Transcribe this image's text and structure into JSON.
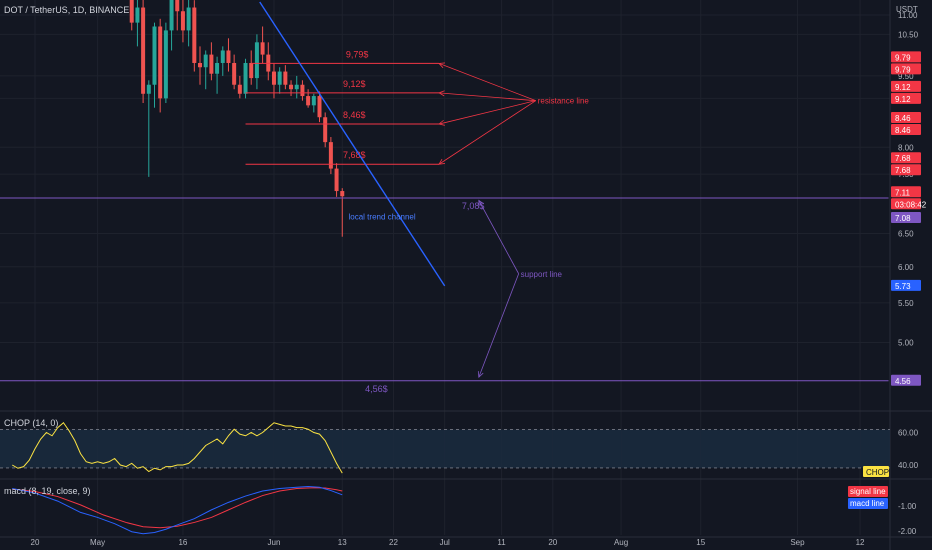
{
  "header": {
    "symbol": "DOT / TetherUS, 1D, BINANCE",
    "currency": "USDT"
  },
  "colors": {
    "bg": "#131722",
    "up": "#26a69a",
    "down": "#ef5350",
    "purple": "#7e57c2",
    "blue": "#2962ff",
    "red_line": "#f23645",
    "chop": "#fbe342",
    "signal": "#f23645",
    "macd": "#2962ff"
  },
  "chart_data": [
    {
      "type": "candlestick",
      "ylim": [
        4.25,
        11.35
      ],
      "y_scale": "log",
      "x_ticks": [
        {
          "label": "20",
          "day": 0
        },
        {
          "label": "May",
          "day": 11
        },
        {
          "label": "16",
          "day": 26
        },
        {
          "label": "Jun",
          "day": 42
        },
        {
          "label": "13",
          "day": 54
        },
        {
          "label": "22",
          "day": 63
        },
        {
          "label": "Jul",
          "day": 72
        },
        {
          "label": "11",
          "day": 82
        },
        {
          "label": "20",
          "day": 91
        },
        {
          "label": "Aug",
          "day": 103
        },
        {
          "label": "15",
          "day": 117
        },
        {
          "label": "Sep",
          "day": 134
        },
        {
          "label": "12",
          "day": 145
        }
      ],
      "y_ticks": [
        "11.00",
        "10.50",
        "9.50",
        "9.00",
        "8.00",
        "7.50",
        "6.50",
        "6.00",
        "5.50",
        "5.00"
      ],
      "price_badges": [
        {
          "text": "9.79",
          "color": "#f23645"
        },
        {
          "text": "9.79",
          "color": "#f23645"
        },
        {
          "text": "9.12",
          "color": "#f23645"
        },
        {
          "text": "9.12",
          "color": "#f23645"
        },
        {
          "text": "8.46",
          "color": "#f23645"
        },
        {
          "text": "8.46",
          "color": "#f23645"
        },
        {
          "text": "7.68",
          "color": "#f23645"
        },
        {
          "text": "7.68",
          "color": "#f23645"
        },
        {
          "text": "7.11",
          "color": "#f23645"
        },
        {
          "text": "03:08:42",
          "color": "#f23645"
        },
        {
          "text": "7.08",
          "color": "#7e57c2"
        },
        {
          "text": "5.73",
          "color": "#2962ff"
        },
        {
          "text": "4.56",
          "color": "#7e57c2"
        }
      ],
      "candles": [
        {
          "d": 17,
          "o": 12.6,
          "h": 13.2,
          "l": 10.6,
          "c": 10.8
        },
        {
          "d": 18,
          "o": 10.8,
          "h": 12.6,
          "l": 10.2,
          "c": 11.2
        },
        {
          "d": 19,
          "o": 11.2,
          "h": 11.6,
          "l": 8.9,
          "c": 9.1
        },
        {
          "d": 20,
          "o": 9.1,
          "h": 9.4,
          "l": 7.45,
          "c": 9.3
        },
        {
          "d": 21,
          "o": 9.3,
          "h": 10.8,
          "l": 8.8,
          "c": 10.7
        },
        {
          "d": 22,
          "o": 10.7,
          "h": 10.9,
          "l": 8.7,
          "c": 9.0
        },
        {
          "d": 23,
          "o": 9.0,
          "h": 10.8,
          "l": 8.9,
          "c": 10.6
        },
        {
          "d": 24,
          "o": 10.6,
          "h": 12.5,
          "l": 10.1,
          "c": 12.2
        },
        {
          "d": 25,
          "o": 12.2,
          "h": 12.8,
          "l": 10.6,
          "c": 11.1
        },
        {
          "d": 26,
          "o": 11.1,
          "h": 11.7,
          "l": 10.3,
          "c": 10.6
        },
        {
          "d": 27,
          "o": 10.6,
          "h": 11.5,
          "l": 10.2,
          "c": 11.2
        },
        {
          "d": 28,
          "o": 11.2,
          "h": 11.4,
          "l": 9.6,
          "c": 9.8
        },
        {
          "d": 29,
          "o": 9.8,
          "h": 10.2,
          "l": 9.3,
          "c": 9.7
        },
        {
          "d": 30,
          "o": 9.7,
          "h": 10.1,
          "l": 9.2,
          "c": 10.0
        },
        {
          "d": 31,
          "o": 10.0,
          "h": 10.3,
          "l": 9.4,
          "c": 9.55
        },
        {
          "d": 32,
          "o": 9.55,
          "h": 9.95,
          "l": 9.1,
          "c": 9.8
        },
        {
          "d": 33,
          "o": 9.8,
          "h": 10.2,
          "l": 9.5,
          "c": 10.1
        },
        {
          "d": 34,
          "o": 10.1,
          "h": 10.4,
          "l": 9.6,
          "c": 9.8
        },
        {
          "d": 35,
          "o": 9.8,
          "h": 10.0,
          "l": 9.2,
          "c": 9.3
        },
        {
          "d": 36,
          "o": 9.3,
          "h": 9.5,
          "l": 9.0,
          "c": 9.1
        },
        {
          "d": 37,
          "o": 9.1,
          "h": 9.9,
          "l": 9.0,
          "c": 9.8
        },
        {
          "d": 38,
          "o": 9.8,
          "h": 10.1,
          "l": 9.3,
          "c": 9.45
        },
        {
          "d": 39,
          "o": 9.45,
          "h": 10.5,
          "l": 9.2,
          "c": 10.3
        },
        {
          "d": 40,
          "o": 10.3,
          "h": 10.7,
          "l": 9.8,
          "c": 10.0
        },
        {
          "d": 41,
          "o": 10.0,
          "h": 10.3,
          "l": 9.4,
          "c": 9.6
        },
        {
          "d": 42,
          "o": 9.6,
          "h": 9.8,
          "l": 9.0,
          "c": 9.3
        },
        {
          "d": 43,
          "o": 9.3,
          "h": 9.7,
          "l": 9.1,
          "c": 9.6
        },
        {
          "d": 44,
          "o": 9.6,
          "h": 9.75,
          "l": 9.2,
          "c": 9.3
        },
        {
          "d": 45,
          "o": 9.3,
          "h": 9.4,
          "l": 9.05,
          "c": 9.2
        },
        {
          "d": 46,
          "o": 9.2,
          "h": 9.5,
          "l": 9.0,
          "c": 9.3
        },
        {
          "d": 47,
          "o": 9.3,
          "h": 9.4,
          "l": 8.95,
          "c": 9.05
        },
        {
          "d": 48,
          "o": 9.05,
          "h": 9.2,
          "l": 8.8,
          "c": 8.85
        },
        {
          "d": 49,
          "o": 8.85,
          "h": 9.1,
          "l": 8.7,
          "c": 9.05
        },
        {
          "d": 50,
          "o": 9.05,
          "h": 9.15,
          "l": 8.5,
          "c": 8.6
        },
        {
          "d": 51,
          "o": 8.6,
          "h": 8.7,
          "l": 8.0,
          "c": 8.1
        },
        {
          "d": 52,
          "o": 8.1,
          "h": 8.2,
          "l": 7.5,
          "c": 7.6
        },
        {
          "d": 53,
          "o": 7.6,
          "h": 7.7,
          "l": 7.1,
          "c": 7.2
        },
        {
          "d": 54,
          "o": 7.2,
          "h": 7.25,
          "l": 6.45,
          "c": 7.11
        }
      ],
      "horizontal_levels": [
        {
          "price": 9.79,
          "label": "9,79$",
          "color": "#f23645",
          "from_day": 38,
          "to_day": 71
        },
        {
          "price": 9.12,
          "label": "9,12$",
          "color": "#f23645",
          "from_day": 37,
          "to_day": 71
        },
        {
          "price": 8.46,
          "label": "8,46$",
          "color": "#f23645",
          "from_day": 37,
          "to_day": 71
        },
        {
          "price": 7.68,
          "label": "7,68$",
          "color": "#f23645",
          "from_day": 37,
          "to_day": 71
        },
        {
          "price": 7.08,
          "label": "7,08$",
          "color": "#7e57c2",
          "from_day": -10,
          "to_day": 150
        },
        {
          "price": 4.56,
          "label": "4,56$",
          "color": "#7e57c2",
          "from_day": -10,
          "to_day": 150
        }
      ],
      "trend_line": {
        "label": "local trend channel",
        "from": {
          "d": 39.5,
          "p": 11.35
        },
        "to": {
          "d": 72,
          "p": 5.73
        },
        "color": "#2962ff"
      },
      "annotations": [
        {
          "text": "resistance line",
          "at": {
            "d": 88,
            "p": 8.95
          },
          "color": "#f23645",
          "targets": [
            {
              "d": 71,
              "p": 9.79
            },
            {
              "d": 71,
              "p": 9.12
            },
            {
              "d": 71,
              "p": 8.46
            },
            {
              "d": 71,
              "p": 7.68
            }
          ]
        },
        {
          "text": "support line",
          "at": {
            "d": 85,
            "p": 5.9
          },
          "color": "#7e57c2",
          "targets": [
            {
              "d": 78,
              "p": 7.04
            },
            {
              "d": 78,
              "p": 4.6
            }
          ]
        }
      ]
    },
    {
      "type": "line",
      "name": "CHOP (14, 0)",
      "ylim": [
        32,
        72
      ],
      "y_ticks": [
        "60.00",
        "40.00"
      ],
      "bands": [
        61.8,
        38.2
      ],
      "badge": "CHOP",
      "values": [
        {
          "d": -4,
          "v": 40
        },
        {
          "d": -3,
          "v": 38
        },
        {
          "d": -2,
          "v": 39
        },
        {
          "d": -1,
          "v": 43
        },
        {
          "d": 0,
          "v": 50
        },
        {
          "d": 1,
          "v": 56
        },
        {
          "d": 2,
          "v": 60
        },
        {
          "d": 3,
          "v": 58
        },
        {
          "d": 4,
          "v": 63
        },
        {
          "d": 5,
          "v": 66
        },
        {
          "d": 6,
          "v": 61
        },
        {
          "d": 7,
          "v": 55
        },
        {
          "d": 8,
          "v": 47
        },
        {
          "d": 9,
          "v": 42
        },
        {
          "d": 10,
          "v": 41
        },
        {
          "d": 11,
          "v": 42
        },
        {
          "d": 12,
          "v": 41
        },
        {
          "d": 13,
          "v": 42
        },
        {
          "d": 14,
          "v": 44
        },
        {
          "d": 15,
          "v": 40
        },
        {
          "d": 16,
          "v": 39
        },
        {
          "d": 17,
          "v": 41
        },
        {
          "d": 18,
          "v": 38
        },
        {
          "d": 19,
          "v": 39
        },
        {
          "d": 20,
          "v": 36
        },
        {
          "d": 21,
          "v": 38
        },
        {
          "d": 22,
          "v": 37
        },
        {
          "d": 23,
          "v": 39
        },
        {
          "d": 24,
          "v": 39
        },
        {
          "d": 25,
          "v": 40
        },
        {
          "d": 26,
          "v": 40
        },
        {
          "d": 27,
          "v": 41
        },
        {
          "d": 28,
          "v": 44
        },
        {
          "d": 29,
          "v": 48
        },
        {
          "d": 30,
          "v": 52
        },
        {
          "d": 31,
          "v": 54
        },
        {
          "d": 32,
          "v": 56
        },
        {
          "d": 33,
          "v": 53
        },
        {
          "d": 34,
          "v": 58
        },
        {
          "d": 35,
          "v": 62
        },
        {
          "d": 36,
          "v": 59
        },
        {
          "d": 37,
          "v": 58
        },
        {
          "d": 38,
          "v": 60
        },
        {
          "d": 39,
          "v": 58
        },
        {
          "d": 40,
          "v": 60
        },
        {
          "d": 41,
          "v": 63
        },
        {
          "d": 42,
          "v": 66
        },
        {
          "d": 43,
          "v": 65
        },
        {
          "d": 44,
          "v": 64
        },
        {
          "d": 45,
          "v": 64
        },
        {
          "d": 46,
          "v": 63
        },
        {
          "d": 47,
          "v": 63
        },
        {
          "d": 48,
          "v": 62
        },
        {
          "d": 49,
          "v": 60
        },
        {
          "d": 50,
          "v": 59
        },
        {
          "d": 51,
          "v": 55
        },
        {
          "d": 52,
          "v": 48
        },
        {
          "d": 53,
          "v": 41
        },
        {
          "d": 54,
          "v": 35
        }
      ]
    },
    {
      "type": "line",
      "name": "macd (8, 19, close, 9)",
      "ylim": [
        -2.15,
        0.0
      ],
      "y_ticks": [
        "-1.00",
        "-2.00"
      ],
      "legend": [
        {
          "name": "signal line",
          "color": "#f23645"
        },
        {
          "name": "macd line",
          "color": "#2962ff"
        }
      ],
      "series": [
        {
          "name": "signal line",
          "color": "#f23645",
          "values": [
            {
              "d": -4,
              "v": -0.32
            },
            {
              "d": 0,
              "v": -0.42
            },
            {
              "d": 4,
              "v": -0.62
            },
            {
              "d": 8,
              "v": -0.95
            },
            {
              "d": 12,
              "v": -1.35
            },
            {
              "d": 16,
              "v": -1.65
            },
            {
              "d": 19,
              "v": -1.82
            },
            {
              "d": 22,
              "v": -1.86
            },
            {
              "d": 25,
              "v": -1.8
            },
            {
              "d": 28,
              "v": -1.65
            },
            {
              "d": 31,
              "v": -1.45
            },
            {
              "d": 34,
              "v": -1.15
            },
            {
              "d": 37,
              "v": -0.85
            },
            {
              "d": 40,
              "v": -0.58
            },
            {
              "d": 43,
              "v": -0.4
            },
            {
              "d": 46,
              "v": -0.3
            },
            {
              "d": 49,
              "v": -0.27
            },
            {
              "d": 51,
              "v": -0.28
            },
            {
              "d": 53,
              "v": -0.35
            },
            {
              "d": 54,
              "v": -0.4
            }
          ]
        },
        {
          "name": "macd line",
          "color": "#2962ff",
          "values": [
            {
              "d": -4,
              "v": -0.3
            },
            {
              "d": 0,
              "v": -0.48
            },
            {
              "d": 4,
              "v": -0.8
            },
            {
              "d": 8,
              "v": -1.25
            },
            {
              "d": 11,
              "v": -1.45
            },
            {
              "d": 14,
              "v": -1.7
            },
            {
              "d": 17,
              "v": -2.02
            },
            {
              "d": 19,
              "v": -2.1
            },
            {
              "d": 21,
              "v": -2.05
            },
            {
              "d": 23,
              "v": -1.92
            },
            {
              "d": 25,
              "v": -1.75
            },
            {
              "d": 28,
              "v": -1.5
            },
            {
              "d": 31,
              "v": -1.15
            },
            {
              "d": 34,
              "v": -0.85
            },
            {
              "d": 37,
              "v": -0.6
            },
            {
              "d": 40,
              "v": -0.4
            },
            {
              "d": 43,
              "v": -0.3
            },
            {
              "d": 46,
              "v": -0.25
            },
            {
              "d": 48,
              "v": -0.22
            },
            {
              "d": 50,
              "v": -0.25
            },
            {
              "d": 52,
              "v": -0.38
            },
            {
              "d": 54,
              "v": -0.55
            }
          ]
        }
      ]
    }
  ]
}
